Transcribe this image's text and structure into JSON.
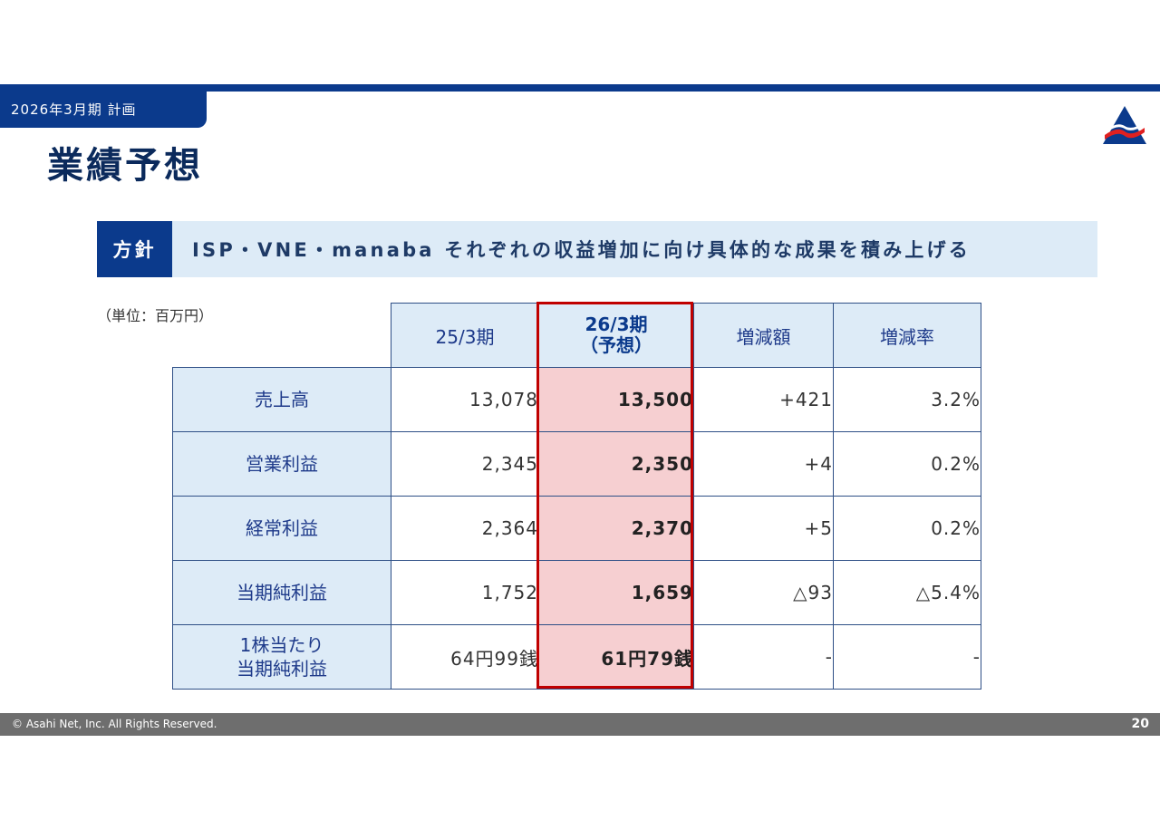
{
  "header": {
    "period_tag": "2026年3月期 計画",
    "title": "業績予想"
  },
  "policy": {
    "label": "方針",
    "text": "ISP・VNE・manaba それぞれの収益増加に向け具体的な成果を積み上げる"
  },
  "table": {
    "unit": "（単位：百万円）",
    "columns": [
      "25/3期",
      "26/3期",
      "（予想）",
      "増減額",
      "増減率"
    ],
    "rows": [
      {
        "label": "売上高",
        "prev": "13,078",
        "forecast": "13,500",
        "diff": "+421",
        "rate": "3.2%"
      },
      {
        "label": "営業利益",
        "prev": "2,345",
        "forecast": "2,350",
        "diff": "+4",
        "rate": "0.2%"
      },
      {
        "label": "経常利益",
        "prev": "2,364",
        "forecast": "2,370",
        "diff": "+5",
        "rate": "0.2%"
      },
      {
        "label": "当期純利益",
        "prev": "1,752",
        "forecast": "1,659",
        "diff": "△93",
        "rate": "△5.4%"
      },
      {
        "label": "1株当たり",
        "label2": "当期純利益",
        "prev": "64円99銭",
        "forecast": "61円79銭",
        "diff": "-",
        "rate": "-"
      }
    ]
  },
  "footer": {
    "copyright": "© Asahi Net, Inc. All Rights Reserved.",
    "page": "20"
  },
  "colors": {
    "brand_blue": "#0b3a8c",
    "light_blue": "#ddebf7",
    "highlight_pink": "#f6cfd1",
    "highlight_border": "#c00000"
  }
}
